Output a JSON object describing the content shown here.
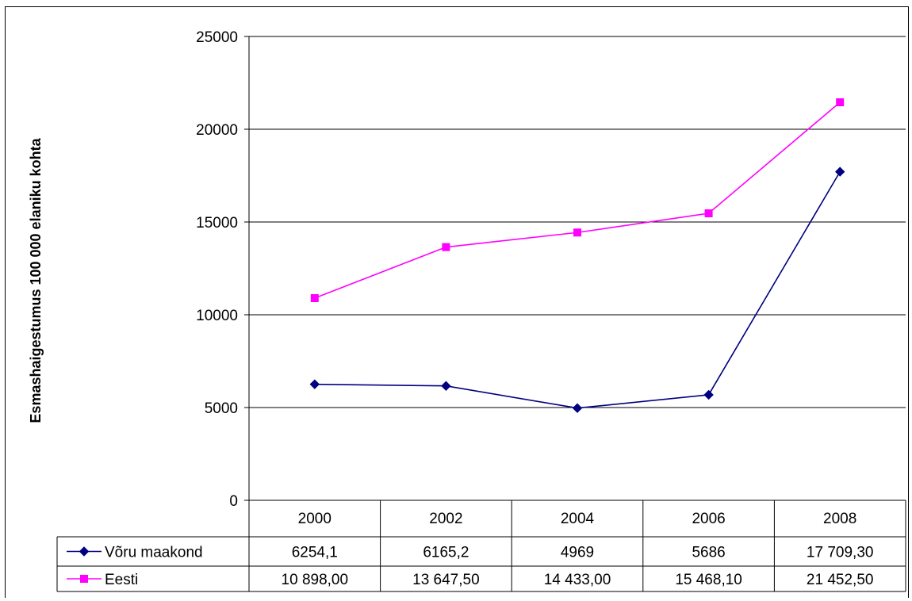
{
  "chart_data": {
    "type": "line",
    "title": "",
    "xlabel": "",
    "ylabel": "Esmashaigestumus 100 000 elaniku kohta",
    "ylim": [
      0,
      25000
    ],
    "yticks": [
      "0",
      "5000",
      "10000",
      "15000",
      "20000",
      "25000"
    ],
    "grid": true,
    "legend": "data-table",
    "categories": [
      "2000",
      "2002",
      "2004",
      "2006",
      "2008"
    ],
    "series": [
      {
        "name": "Võru maakond",
        "color": "#000080",
        "marker": "diamond",
        "values": [
          6254.1,
          6165.2,
          4969,
          5686,
          17709.3
        ],
        "labels": [
          "6254,1",
          "6165,2",
          "4969",
          "5686",
          "17 709,30"
        ]
      },
      {
        "name": "Eesti",
        "color": "#FF00FF",
        "marker": "square",
        "values": [
          10898,
          13647.5,
          14433,
          15468.1,
          21452.5
        ],
        "labels": [
          "10 898,00",
          "13 647,50",
          "14 433,00",
          "15 468,10",
          "21 452,50"
        ]
      }
    ]
  }
}
